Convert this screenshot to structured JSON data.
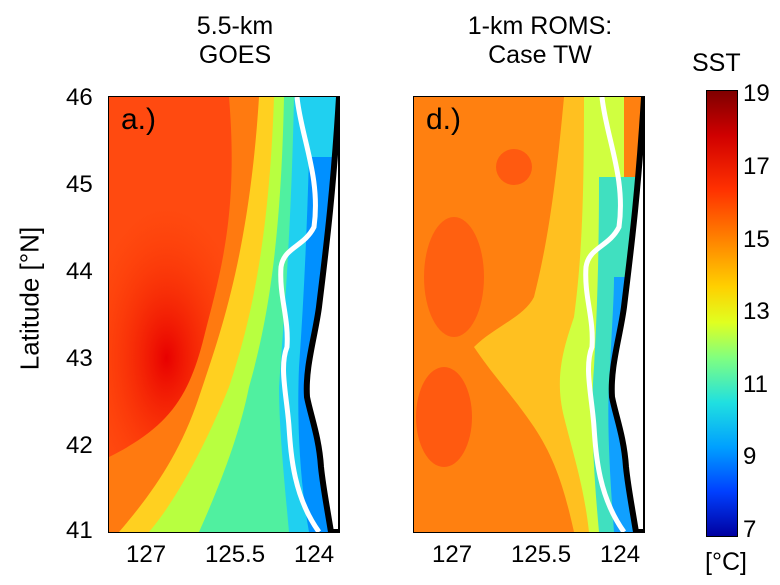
{
  "panels": [
    {
      "title_line1": "5.5-km",
      "title_line2": "GOES",
      "label": "a.)"
    },
    {
      "title_line1": "1-km ROMS:",
      "title_line2": "Case TW",
      "label": "d.)"
    }
  ],
  "y_axis": {
    "label": "Latitude [°N]",
    "ticks": [
      "46",
      "45",
      "44",
      "43",
      "42",
      "41"
    ]
  },
  "x_axis": {
    "ticks": [
      "127",
      "125.5",
      "124"
    ]
  },
  "colorbar": {
    "title": "SST",
    "unit": "[°C]",
    "ticks": [
      "19",
      "17",
      "15",
      "13",
      "11",
      "9",
      "7"
    ],
    "colors": [
      "#7f0000",
      "#d00000",
      "#ff3000",
      "#ff8000",
      "#ffd000",
      "#e0ff20",
      "#80ff80",
      "#20e0e0",
      "#00a0ff",
      "#0040ff",
      "#0000a0"
    ]
  },
  "map_data": {
    "lat_range": [
      41,
      46
    ],
    "lon_range": [
      "127.8 W",
      "123.8 W"
    ],
    "isobath_color": "#ffffff",
    "coast_color": "#000000"
  }
}
